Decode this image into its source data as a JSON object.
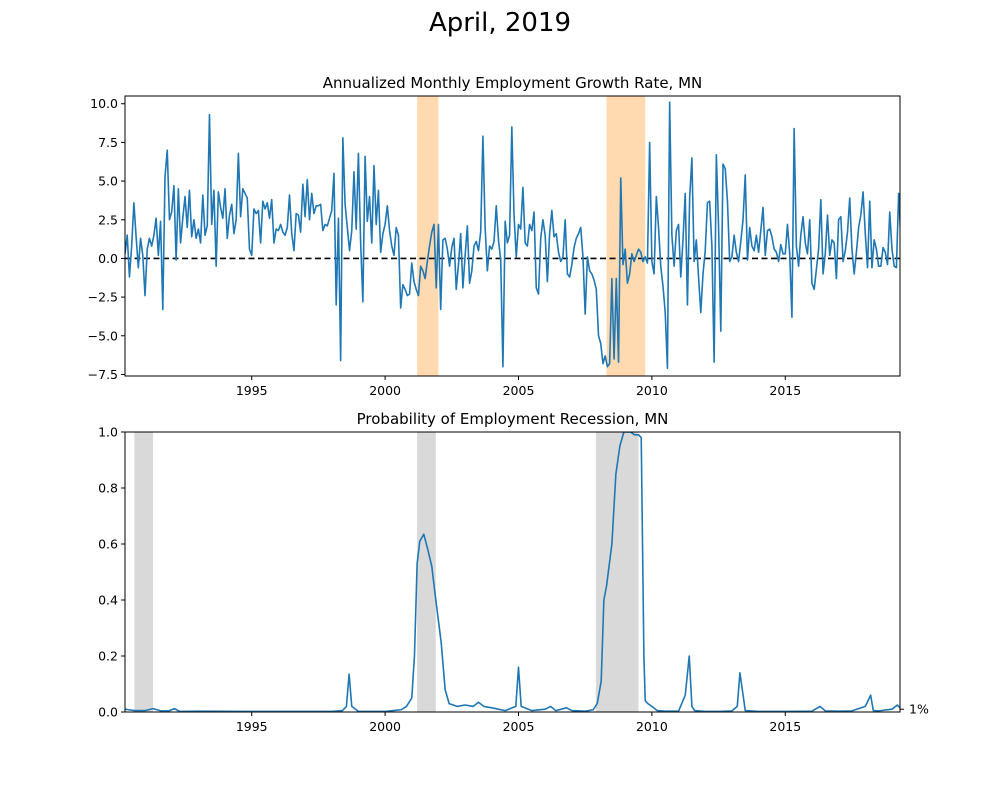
{
  "title": "April, 2019",
  "chart_data": [
    {
      "type": "line",
      "title": "Annualized Monthly Employment Growth Rate, MN",
      "xlabel": "",
      "ylabel": "",
      "xlim": [
        1990.25,
        2019.3
      ],
      "ylim": [
        -7.6,
        10.5
      ],
      "x_ticks": [
        1995,
        2000,
        2005,
        2010,
        2015
      ],
      "y_ticks": [
        -7.5,
        -5.0,
        -2.5,
        0.0,
        2.5,
        5.0,
        7.5,
        10.0
      ],
      "y_tick_labels": [
        "−7.5",
        "−5.0",
        "−2.5",
        "0.0",
        "2.5",
        "5.0",
        "7.5",
        "10.0"
      ],
      "grid": false,
      "reference_line": {
        "y": 0,
        "style": "dashed",
        "color": "#000000"
      },
      "shaded_regions": [
        {
          "start": 2001.2,
          "end": 2002.0,
          "color": "#ffdab0"
        },
        {
          "start": 2008.3,
          "end": 2009.75,
          "color": "#ffdab0"
        }
      ],
      "series": [
        {
          "color": "#1f77b4",
          "start": 1990.25,
          "step": 0.08333,
          "values": [
            0.3,
            1.5,
            -1.2,
            0.8,
            3.6,
            1.4,
            -0.6,
            1.3,
            0.2,
            -2.4,
            0.6,
            1.3,
            0.8,
            1.5,
            2.6,
            0.2,
            2.4,
            -3.3,
            5.3,
            7.0,
            2.5,
            3.0,
            4.7,
            -0.1,
            4.5,
            1.0,
            2.6,
            4.0,
            2.0,
            4.4,
            1.4,
            2.5,
            1.3,
            1.9,
            1.0,
            4.1,
            1.5,
            2.1,
            9.3,
            2.2,
            4.4,
            -0.5,
            4.3,
            3.3,
            2.6,
            4.5,
            1.3,
            2.8,
            3.5,
            1.6,
            2.5,
            6.8,
            2.7,
            4.5,
            4.2,
            3.9,
            0.6,
            0.2,
            3.2,
            2.9,
            3.1,
            1.0,
            3.7,
            3.2,
            3.6,
            2.6,
            3.8,
            1.0,
            1.9,
            1.8,
            2.2,
            1.7,
            1.5,
            2.0,
            4.1,
            1.6,
            0.5,
            2.9,
            2.8,
            1.7,
            4.8,
            2.7,
            5.1,
            2.5,
            4.2,
            2.9,
            3.4,
            3.4,
            3.5,
            1.8,
            2.2,
            2.1,
            2.6,
            3.1,
            5.5,
            -3.0,
            2.6,
            -6.6,
            7.8,
            3.5,
            2.0,
            0.5,
            1.8,
            5.6,
            1.9,
            6.8,
            1.0,
            -2.8,
            6.6,
            2.4,
            4.0,
            1.0,
            6.0,
            2.2,
            4.4,
            0.4,
            1.6,
            2.2,
            3.4,
            1.8,
            0.8,
            0.2,
            2.0,
            1.5,
            -3.2,
            -1.7,
            -2.0,
            -2.4,
            -2.3,
            -0.3,
            -1.5,
            -2.0,
            -2.4,
            -0.5,
            -0.8,
            -1.3,
            -0.2,
            0.8,
            1.7,
            2.2,
            -1.9,
            2.2,
            -3.3,
            1.2,
            1.3,
            0.6,
            -0.5,
            0.7,
            1.3,
            -2.0,
            -0.4,
            1.6,
            -1.9,
            0.2,
            2.1,
            -1.6,
            -0.8,
            0.8,
            1.1,
            0.5,
            1.7,
            7.9,
            2.0,
            -0.8,
            0.8,
            0.6,
            1.1,
            3.4,
            1.2,
            -0.1,
            -7.0,
            2.4,
            1.0,
            1.5,
            8.5,
            2.8,
            0.1,
            2.2,
            1.9,
            4.6,
            1.0,
            0.8,
            2.2,
            1.8,
            3.0,
            -1.9,
            -2.3,
            1.3,
            2.5,
            1.5,
            -1.5,
            1.6,
            3.1,
            1.4,
            1.6,
            0.4,
            -0.2,
            0.1,
            2.5,
            -1.0,
            -1.2,
            -0.4,
            0.7,
            1.3,
            1.6,
            2.0,
            0.1,
            -3.6,
            0.1,
            -0.8,
            -1.0,
            -1.4,
            -2.0,
            -5.0,
            -5.5,
            -6.8,
            -6.3,
            -7.0,
            -6.8,
            -1.3,
            -6.5,
            -1.3,
            -6.7,
            5.2,
            -0.4,
            0.6,
            -1.6,
            -1.0,
            0.3,
            -0.2,
            0.2,
            0.6,
            0.4,
            -0.2,
            0.1,
            -0.3,
            7.5,
            -0.2,
            -1.0,
            4.0,
            2.0,
            -0.5,
            -1.8,
            -3.5,
            -7.1,
            10.1,
            1.5,
            -0.5,
            1.8,
            2.2,
            -1.2,
            1.2,
            4.2,
            -3.0,
            3.9,
            6.5,
            -0.2,
            1.2,
            -1.2,
            -3.5,
            -1.0,
            0.5,
            3.6,
            3.7,
            0.8,
            -6.7,
            6.7,
            2.1,
            -4.7,
            6.1,
            5.8,
            3.7,
            -0.2,
            0.1,
            1.5,
            0.4,
            -0.2,
            1.1,
            2.5,
            5.4,
            -0.1,
            2.0,
            0.8,
            0.5,
            1.5,
            0.4,
            1.8,
            3.3,
            0.2,
            1.8,
            1.9,
            1.4,
            0.6,
            0.4,
            -0.2,
            0.9,
            0.3,
            0.3,
            2.2,
            0.3,
            -3.8,
            8.4,
            0.8,
            -0.5,
            1.5,
            2.7,
            1.0,
            0.3,
            2.5,
            -1.6,
            -2.0,
            -0.7,
            0.6,
            3.8,
            -1.0,
            0.3,
            2.8,
            0.2,
            1.2,
            1.0,
            -1.3,
            2.5,
            2.7,
            -0.2,
            0.5,
            1.7,
            3.9,
            0.6,
            -1.0,
            0.4,
            2.0,
            2.8,
            4.3,
            1.6,
            -0.6,
            3.7,
            -0.6,
            1.2,
            0.6,
            -0.5,
            -0.5,
            0.7,
            0.4,
            -0.4,
            3.0,
            0.6,
            -0.5,
            -0.6,
            4.2,
            1.3,
            2.5,
            -0.1,
            1.3,
            -4.4,
            5.9,
            0.4,
            3.0,
            -1.7,
            1.8,
            -3.0,
            0.0,
            1.3,
            -0.2,
            -0.2,
            0.4,
            -1.2,
            -3.1,
            1.6,
            1.5
          ]
        }
      ]
    },
    {
      "type": "line",
      "title": "Probability of Employment Recession, MN",
      "xlabel": "",
      "ylabel": "",
      "xlim": [
        1990.25,
        2019.3
      ],
      "ylim": [
        0.0,
        1.0
      ],
      "x_ticks": [
        1995,
        2000,
        2005,
        2010,
        2015
      ],
      "y_ticks": [
        0.0,
        0.2,
        0.4,
        0.6,
        0.8,
        1.0
      ],
      "y_tick_labels": [
        "0.0",
        "0.2",
        "0.4",
        "0.6",
        "0.8",
        "1.0"
      ],
      "right_tick": {
        "value": 0.01,
        "label": "1%"
      },
      "grid": false,
      "shaded_regions": [
        {
          "start": 1990.6,
          "end": 1991.3,
          "color": "#d9d9d9"
        },
        {
          "start": 2001.2,
          "end": 2001.9,
          "color": "#d9d9d9"
        },
        {
          "start": 2007.9,
          "end": 2009.5,
          "color": "#d9d9d9"
        }
      ],
      "series": [
        {
          "color": "#1f77b4",
          "x": [
            1990.25,
            1990.6,
            1991.0,
            1991.3,
            1991.6,
            1991.9,
            1992.1,
            1992.3,
            1993.0,
            1995.0,
            1997.0,
            1998.0,
            1998.4,
            1998.55,
            1998.65,
            1998.75,
            1999.0,
            2000.0,
            2000.6,
            2000.8,
            2001.0,
            2001.1,
            2001.2,
            2001.3,
            2001.45,
            2001.6,
            2001.75,
            2001.9,
            2002.1,
            2002.25,
            2002.4,
            2002.55,
            2002.7,
            2003.0,
            2003.3,
            2003.5,
            2003.7,
            2004.0,
            2004.5,
            2004.9,
            2005.0,
            2005.1,
            2005.5,
            2006.0,
            2006.2,
            2006.4,
            2006.8,
            2007.0,
            2007.5,
            2007.8,
            2007.95,
            2008.1,
            2008.2,
            2008.3,
            2008.5,
            2008.65,
            2008.8,
            2008.95,
            2009.1,
            2009.2,
            2009.35,
            2009.5,
            2009.6,
            2009.7,
            2009.75,
            2009.85,
            2010.0,
            2010.2,
            2010.5,
            2011.0,
            2011.25,
            2011.4,
            2011.5,
            2011.6,
            2012.0,
            2012.5,
            2013.0,
            2013.2,
            2013.3,
            2013.5,
            2014.0,
            2015.0,
            2016.0,
            2016.3,
            2016.5,
            2017.0,
            2017.5,
            2018.0,
            2018.2,
            2018.3,
            2018.5,
            2019.0,
            2019.2,
            2019.3
          ],
          "y": [
            0.01,
            0.005,
            0.005,
            0.012,
            0.004,
            0.004,
            0.012,
            0.002,
            0.003,
            0.002,
            0.002,
            0.002,
            0.005,
            0.02,
            0.135,
            0.02,
            0.002,
            0.002,
            0.008,
            0.02,
            0.05,
            0.2,
            0.53,
            0.61,
            0.635,
            0.58,
            0.52,
            0.4,
            0.25,
            0.08,
            0.03,
            0.025,
            0.02,
            0.025,
            0.02,
            0.035,
            0.02,
            0.015,
            0.005,
            0.02,
            0.16,
            0.02,
            0.005,
            0.01,
            0.02,
            0.005,
            0.015,
            0.005,
            0.003,
            0.008,
            0.03,
            0.11,
            0.4,
            0.45,
            0.6,
            0.85,
            0.95,
            1.0,
            1.0,
            1.0,
            0.99,
            0.99,
            0.98,
            0.2,
            0.04,
            0.03,
            0.02,
            0.005,
            0.003,
            0.003,
            0.06,
            0.2,
            0.02,
            0.005,
            0.002,
            0.002,
            0.004,
            0.02,
            0.14,
            0.005,
            0.002,
            0.002,
            0.003,
            0.02,
            0.004,
            0.003,
            0.004,
            0.02,
            0.06,
            0.005,
            0.004,
            0.01,
            0.025,
            0.015
          ]
        }
      ]
    }
  ]
}
